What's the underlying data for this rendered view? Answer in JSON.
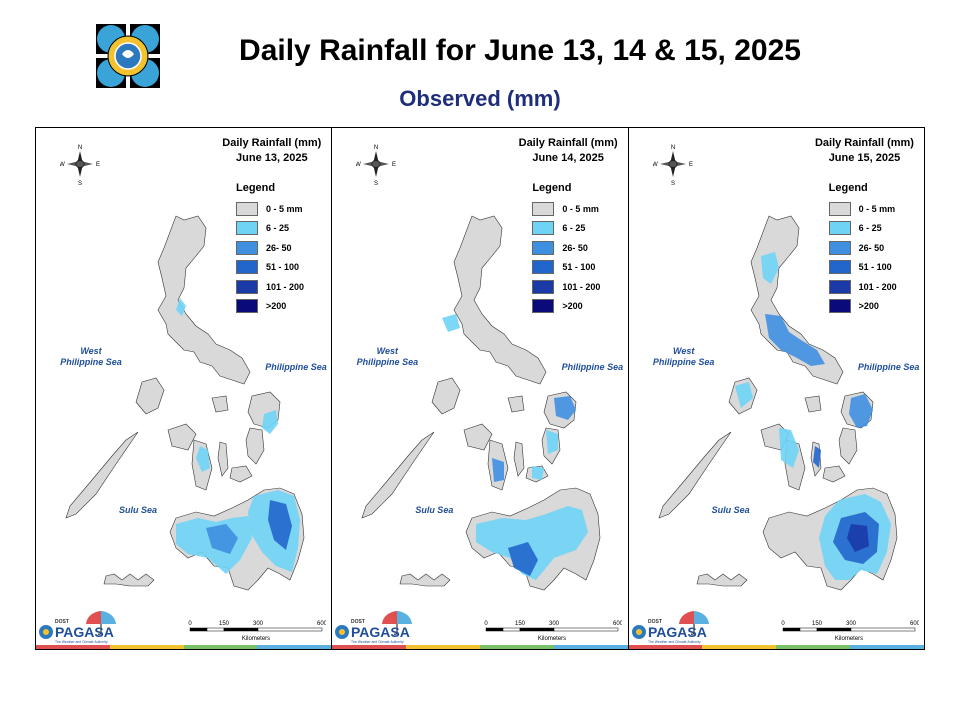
{
  "header": {
    "title": "Daily Rainfall for June 13, 14 & 15, 2025",
    "subtitle": "Observed (mm)"
  },
  "legend": {
    "title": "Legend",
    "items": [
      {
        "label": "0 - 5 mm",
        "color": "#d9d9d9"
      },
      {
        "label": "6 - 25",
        "color": "#6fd3f5"
      },
      {
        "label": "26- 50",
        "color": "#3f8fe0"
      },
      {
        "label": "51 - 100",
        "color": "#2266cc"
      },
      {
        "label": "101 - 200",
        "color": "#1a3aa8"
      },
      {
        "label": ">200",
        "color": "#0a0a7a"
      }
    ]
  },
  "panels": [
    {
      "heading": "Daily Rainfall (mm)",
      "date": "June 13, 2025"
    },
    {
      "heading": "Daily Rainfall (mm)",
      "date": "June 14, 2025"
    },
    {
      "heading": "Daily Rainfall (mm)",
      "date": "June 15, 2025"
    }
  ],
  "seas": {
    "west_line1": "West",
    "west_line2": "Philippine Sea",
    "east": "Philippine Sea",
    "sulu": "Sulu Sea"
  },
  "compass": {
    "n": "N",
    "s": "S",
    "e": "E",
    "w": "W"
  },
  "scale": {
    "ticks": [
      "0",
      "150",
      "300",
      "600"
    ],
    "unit": "Kilometers"
  },
  "branding": {
    "agency": "PAGASA",
    "dost": "DOST",
    "tagline": "The Weather and Climate Authority"
  },
  "strip_colors": [
    "#e05050",
    "#f2c230",
    "#7ac06a",
    "#5ab0e0"
  ]
}
